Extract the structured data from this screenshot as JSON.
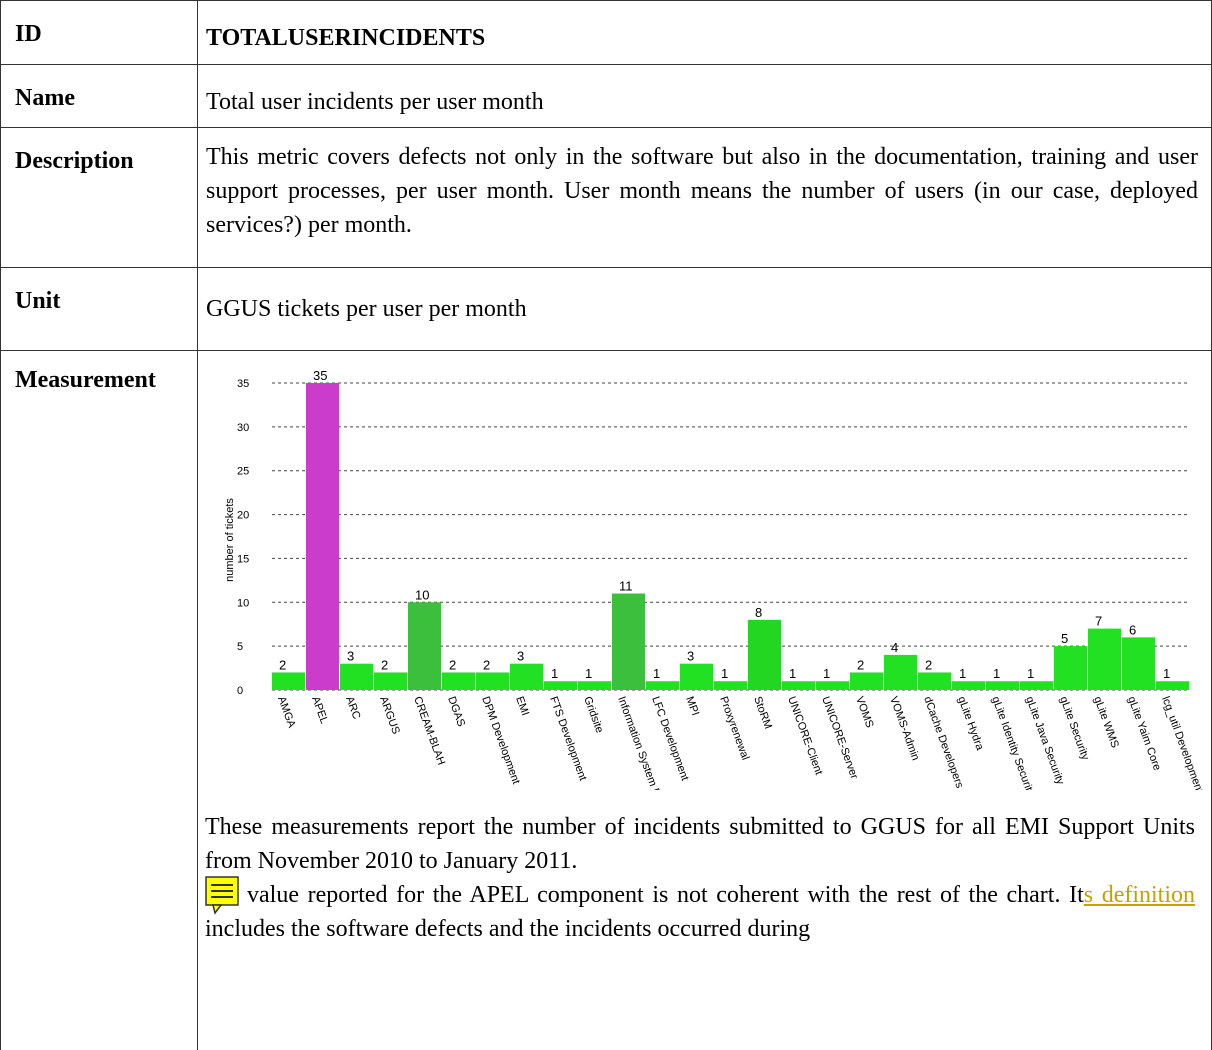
{
  "rows": [
    {
      "label": "ID",
      "value": "TOTALUSERINCIDENTS"
    },
    {
      "label": "Name",
      "value": "Total user incidents per user month"
    },
    {
      "label": "Description",
      "value": "This metric covers defects not only in the software but also in the documentation, training and user support processes, per user month. User month means the number of users (in our case, deployed services?) per month."
    },
    {
      "label": "Unit",
      "value": "GGUS tickets per user per month"
    },
    {
      "label": "Measurement"
    }
  ],
  "chart_data": {
    "type": "bar",
    "y_label": "number of tickets",
    "categories": [
      "AMGA",
      "APEL",
      "ARC",
      "ARGUS",
      "CREAM-BLAH",
      "DGAS",
      "DPM Development",
      "EMI",
      "FTS Development",
      "Gridsite",
      "Information System Dr",
      "LFC Development",
      "MPI",
      "Proxyrenewal",
      "StoRM",
      "UNICORE-Client",
      "UNICORE-Server",
      "VOMS",
      "VOMS-Admin",
      "dCache Developers",
      "gLite Hydra",
      "gLite Identity Security",
      "gLite Java Security",
      "gLite Security",
      "gLite WMS",
      "gLite Yaim Core",
      "lcg_util Development"
    ],
    "values": [
      2,
      35,
      3,
      2,
      10,
      2,
      2,
      3,
      1,
      1,
      11,
      1,
      3,
      1,
      8,
      1,
      1,
      2,
      4,
      2,
      1,
      1,
      1,
      5,
      7,
      6,
      1
    ],
    "colors": [
      "#22e022",
      "#cc3ccc",
      "#22e022",
      "#22e022",
      "#3cbf3c",
      "#22e022",
      "#22e022",
      "#22e022",
      "#22e022",
      "#22e022",
      "#3cbf3c",
      "#22e022",
      "#22e022",
      "#22e022",
      "#22d622",
      "#22e022",
      "#22e022",
      "#22e022",
      "#22e022",
      "#22e022",
      "#22e022",
      "#22e022",
      "#22e022",
      "#22e022",
      "#22e022",
      "#22e022",
      "#22e022"
    ],
    "ylim": [
      0,
      35
    ],
    "yticks": [
      0,
      5,
      10,
      15,
      20,
      25,
      30,
      35
    ],
    "grid": true
  },
  "measurement_text": {
    "paragraph": "These measurements report the number of incidents submitted to GGUS for all EMI Support Units from November 2010 to January 2011.",
    "note": {
      "before": "value reported for the APEL component is not coherent with the rest of the chart. It",
      "link": "s definition",
      "after": " includes the software defects and the incidents occurred during"
    }
  }
}
